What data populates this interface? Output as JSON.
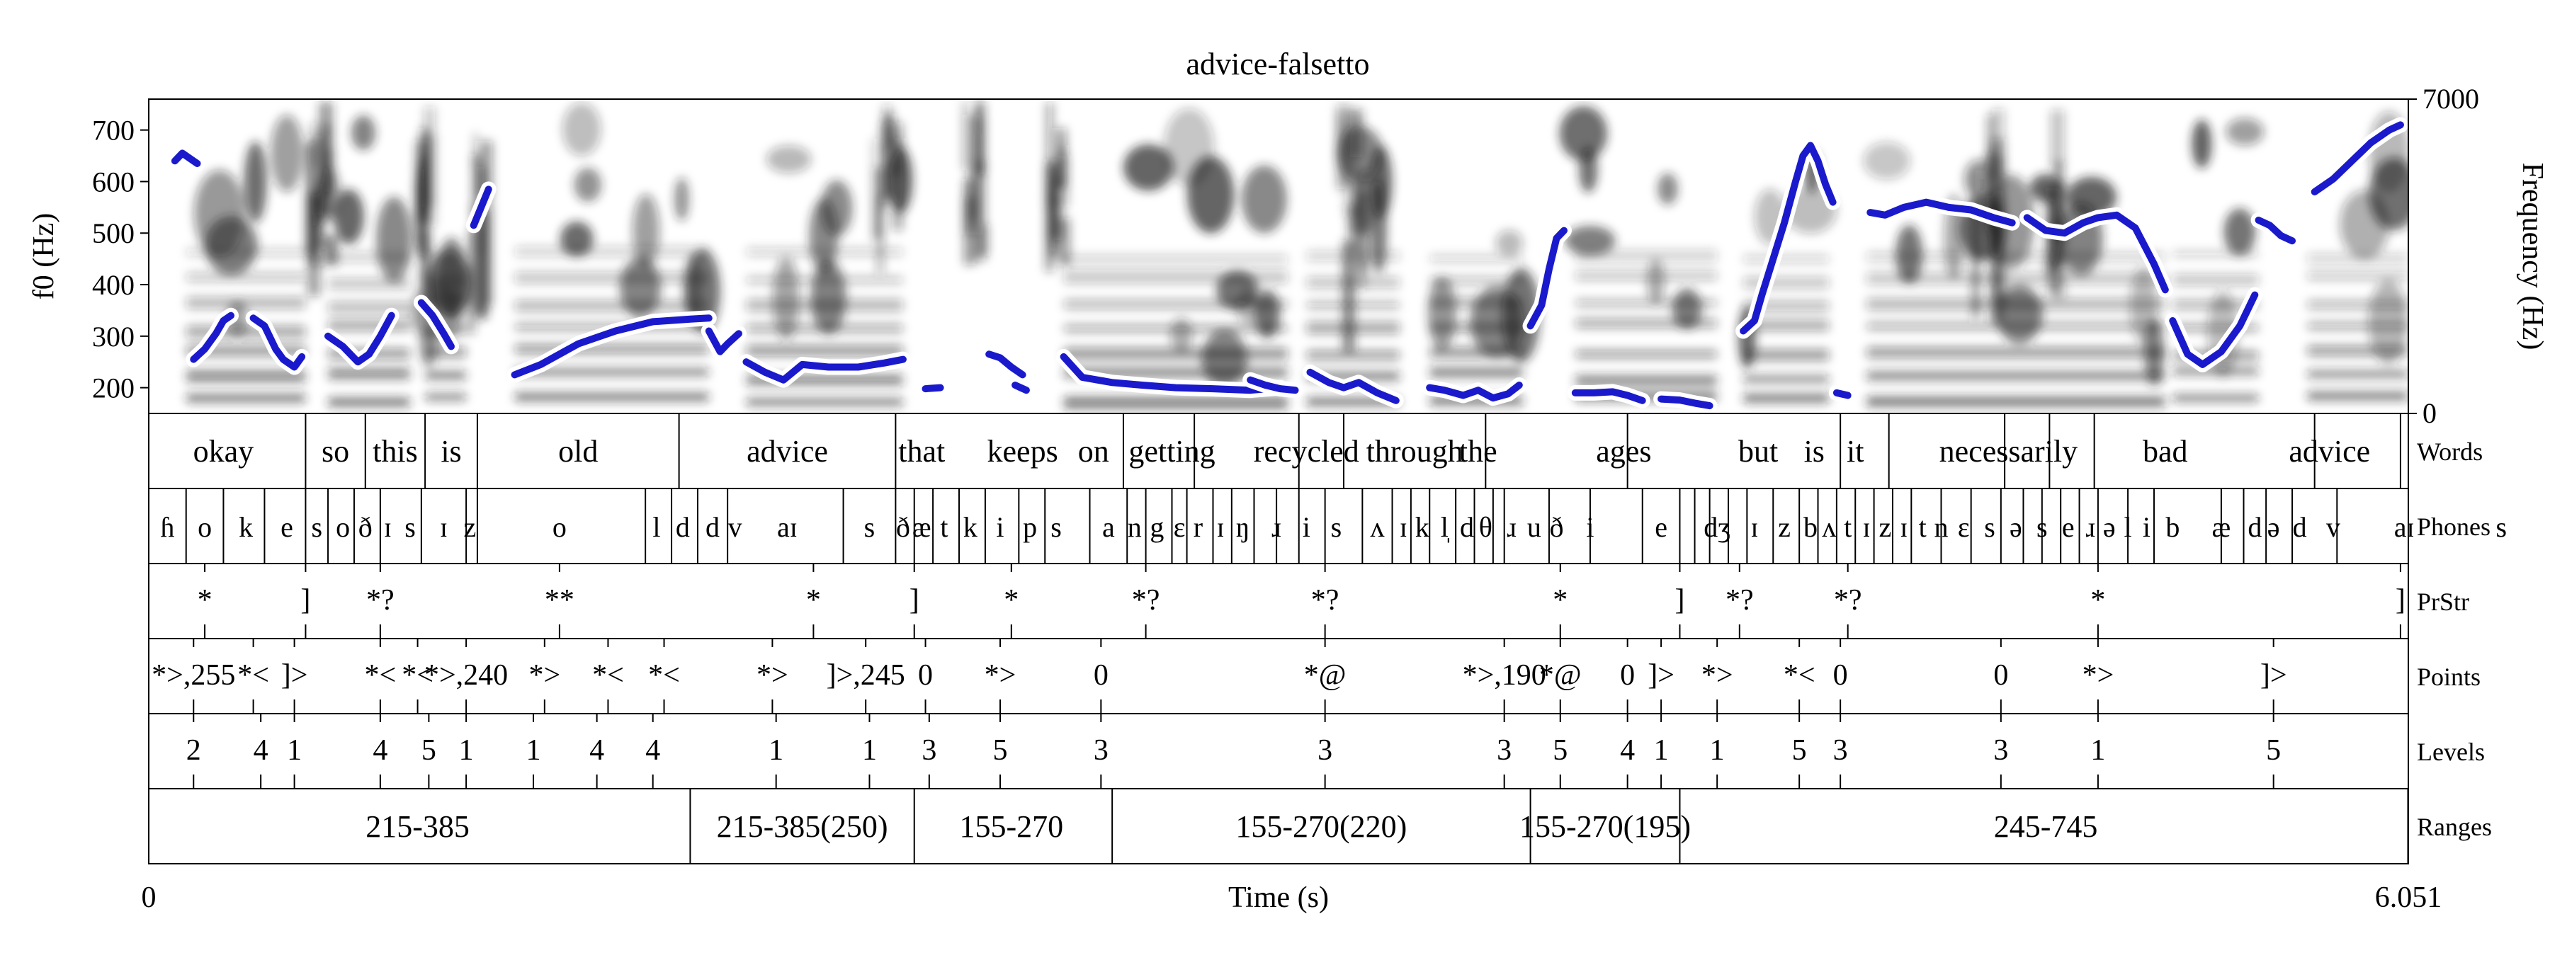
{
  "title": "advice-falsetto",
  "axes": {
    "f0_label": "f0 (Hz)",
    "f0_ticks": [
      700,
      600,
      500,
      400,
      300,
      200
    ],
    "freq_label": "Frequency (Hz)",
    "freq_top": "7000",
    "freq_bottom": "0",
    "time_label": "Time (s)",
    "time_start": "0",
    "time_end": "6.051"
  },
  "tier_names": [
    "Words",
    "Phones",
    "PrStr",
    "Points",
    "Levels",
    "Ranges"
  ],
  "words": {
    "bounds": [
      0,
      0.42,
      0.58,
      0.74,
      0.88,
      1.42,
      2.0,
      2.61,
      2.8,
      3.08,
      3.2,
      3.58,
      3.96,
      4.53,
      4.66,
      4.97,
      5.09,
      5.21,
      5.8,
      6.03,
      6.35,
      6.42
    ],
    "labels": [
      {
        "t": 0.2,
        "text": "okay"
      },
      {
        "t": 0.5,
        "text": "so"
      },
      {
        "t": 0.66,
        "text": "this"
      },
      {
        "t": 0.81,
        "text": "is"
      },
      {
        "t": 1.15,
        "text": "old"
      },
      {
        "t": 1.71,
        "text": "advice"
      },
      {
        "t": 2.07,
        "text": "that"
      },
      {
        "t": 2.34,
        "text": "keeps"
      },
      {
        "t": 2.53,
        "text": "on"
      },
      {
        "t": 2.74,
        "text": "getting"
      },
      {
        "t": 3.1,
        "text": "recycled"
      },
      {
        "t": 3.39,
        "text": "through"
      },
      {
        "t": 3.56,
        "text": "the"
      },
      {
        "t": 3.95,
        "text": "ages"
      },
      {
        "t": 4.31,
        "text": "but"
      },
      {
        "t": 4.46,
        "text": "is"
      },
      {
        "t": 4.57,
        "text": "it"
      },
      {
        "t": 4.98,
        "text": "necessarily"
      },
      {
        "t": 5.4,
        "text": "bad"
      },
      {
        "t": 5.84,
        "text": "advice"
      }
    ]
  },
  "phones": {
    "bounds": [
      0,
      0.1,
      0.2,
      0.31,
      0.42,
      0.48,
      0.55,
      0.62,
      0.73,
      0.85,
      0.88,
      1.33,
      1.4,
      1.47,
      1.55,
      1.86,
      2.0,
      2.05,
      2.1,
      2.17,
      2.24,
      2.33,
      2.4,
      2.52,
      2.62,
      2.67,
      2.74,
      2.78,
      2.85,
      2.9,
      2.96,
      3.02,
      3.08,
      3.15,
      3.25,
      3.33,
      3.38,
      3.43,
      3.5,
      3.55,
      3.6,
      3.63,
      3.75,
      3.86,
      4.0,
      4.1,
      4.14,
      4.18,
      4.23,
      4.28,
      4.35,
      4.42,
      4.47,
      4.52,
      4.57,
      4.62,
      4.67,
      4.72,
      4.8,
      4.88,
      4.96,
      5.02,
      5.07,
      5.12,
      5.17,
      5.22,
      5.3,
      5.37,
      5.55,
      5.61,
      5.67,
      5.74,
      5.86,
      6.07,
      6.32
    ],
    "labels": [
      {
        "t": 0.05,
        "text": "ɦ"
      },
      {
        "t": 0.15,
        "text": "o"
      },
      {
        "t": 0.26,
        "text": "k"
      },
      {
        "t": 0.37,
        "text": "e"
      },
      {
        "t": 0.45,
        "text": "s"
      },
      {
        "t": 0.52,
        "text": "o"
      },
      {
        "t": 0.58,
        "text": "ð"
      },
      {
        "t": 0.64,
        "text": "ɪ"
      },
      {
        "t": 0.7,
        "text": "s"
      },
      {
        "t": 0.79,
        "text": "ɪ"
      },
      {
        "t": 0.86,
        "text": "z"
      },
      {
        "t": 1.1,
        "text": "o"
      },
      {
        "t": 1.36,
        "text": "l"
      },
      {
        "t": 1.43,
        "text": "d"
      },
      {
        "t": 1.51,
        "text": "d"
      },
      {
        "t": 1.57,
        "text": "v"
      },
      {
        "t": 1.71,
        "text": "aɪ"
      },
      {
        "t": 1.93,
        "text": "s"
      },
      {
        "t": 2.02,
        "text": "ð"
      },
      {
        "t": 2.07,
        "text": "æ"
      },
      {
        "t": 2.13,
        "text": "t"
      },
      {
        "t": 2.2,
        "text": "k"
      },
      {
        "t": 2.28,
        "text": "i"
      },
      {
        "t": 2.36,
        "text": "p"
      },
      {
        "t": 2.43,
        "text": "s"
      },
      {
        "t": 2.57,
        "text": "a"
      },
      {
        "t": 2.64,
        "text": "n"
      },
      {
        "t": 2.7,
        "text": "g"
      },
      {
        "t": 2.76,
        "text": "ɛ"
      },
      {
        "t": 2.81,
        "text": "r"
      },
      {
        "t": 2.87,
        "text": "ɪ"
      },
      {
        "t": 2.93,
        "text": "ŋ"
      },
      {
        "t": 3.02,
        "text": "ɹ"
      },
      {
        "t": 3.1,
        "text": "i"
      },
      {
        "t": 3.18,
        "text": "s"
      },
      {
        "t": 3.29,
        "text": "ʌ"
      },
      {
        "t": 3.36,
        "text": "ɪ"
      },
      {
        "t": 3.41,
        "text": "k"
      },
      {
        "t": 3.47,
        "text": "l̩"
      },
      {
        "t": 3.53,
        "text": "d"
      },
      {
        "t": 3.58,
        "text": "θ"
      },
      {
        "t": 3.65,
        "text": "ɹ"
      },
      {
        "t": 3.71,
        "text": "u"
      },
      {
        "t": 3.77,
        "text": "ð"
      },
      {
        "t": 3.86,
        "text": "i"
      },
      {
        "t": 4.05,
        "text": "e"
      },
      {
        "t": 4.2,
        "text": "dʒ"
      },
      {
        "t": 4.3,
        "text": "ɪ"
      },
      {
        "t": 4.38,
        "text": "z"
      },
      {
        "t": 4.45,
        "text": "b"
      },
      {
        "t": 4.5,
        "text": "ʌ"
      },
      {
        "t": 4.55,
        "text": "t"
      },
      {
        "t": 4.6,
        "text": "ɪ"
      },
      {
        "t": 4.65,
        "text": "z"
      },
      {
        "t": 4.7,
        "text": "ɪ"
      },
      {
        "t": 4.75,
        "text": "t"
      },
      {
        "t": 4.8,
        "text": "n"
      },
      {
        "t": 4.86,
        "text": "ɛ"
      },
      {
        "t": 4.93,
        "text": "s"
      },
      {
        "t": 5.0,
        "text": "ə"
      },
      {
        "t": 5.07,
        "text": "s"
      },
      {
        "t": 5.14,
        "text": "e"
      },
      {
        "t": 5.2,
        "text": "ɹ"
      },
      {
        "t": 5.25,
        "text": "ə"
      },
      {
        "t": 5.3,
        "text": "l"
      },
      {
        "t": 5.35,
        "text": "i"
      },
      {
        "t": 5.42,
        "text": "b"
      },
      {
        "t": 5.55,
        "text": "æ"
      },
      {
        "t": 5.64,
        "text": "d"
      },
      {
        "t": 5.69,
        "text": "ə"
      },
      {
        "t": 5.76,
        "text": "d"
      },
      {
        "t": 5.85,
        "text": "v"
      },
      {
        "t": 6.04,
        "text": "aɪ"
      },
      {
        "t": 6.3,
        "text": "s"
      }
    ]
  },
  "prstr": {
    "marks": [
      {
        "t": 0.15,
        "text": "*"
      },
      {
        "t": 0.42,
        "text": "]"
      },
      {
        "t": 0.62,
        "text": "*?"
      },
      {
        "t": 1.1,
        "text": "**"
      },
      {
        "t": 1.78,
        "text": "*"
      },
      {
        "t": 2.05,
        "text": "]"
      },
      {
        "t": 2.31,
        "text": "*"
      },
      {
        "t": 2.67,
        "text": "*?"
      },
      {
        "t": 3.15,
        "text": "*?"
      },
      {
        "t": 3.78,
        "text": "*"
      },
      {
        "t": 4.1,
        "text": "]"
      },
      {
        "t": 4.26,
        "text": "*?"
      },
      {
        "t": 4.55,
        "text": "*?"
      },
      {
        "t": 5.22,
        "text": "*"
      },
      {
        "t": 6.03,
        "text": "]"
      }
    ]
  },
  "points": {
    "marks": [
      {
        "t": 0.12,
        "text": "*>,255"
      },
      {
        "t": 0.28,
        "text": "*<"
      },
      {
        "t": 0.39,
        "text": "]>"
      },
      {
        "t": 0.62,
        "text": "*<"
      },
      {
        "t": 0.72,
        "text": "*<"
      },
      {
        "t": 0.85,
        "text": "*>,240"
      },
      {
        "t": 1.06,
        "text": "*>"
      },
      {
        "t": 1.23,
        "text": "*<"
      },
      {
        "t": 1.38,
        "text": "*<"
      },
      {
        "t": 1.67,
        "text": "*>"
      },
      {
        "t": 1.92,
        "text": "]>,245"
      },
      {
        "t": 2.08,
        "text": "0"
      },
      {
        "t": 2.28,
        "text": "*>"
      },
      {
        "t": 2.55,
        "text": "0"
      },
      {
        "t": 3.15,
        "text": "*@"
      },
      {
        "t": 3.63,
        "text": "*>,190"
      },
      {
        "t": 3.78,
        "text": "*@"
      },
      {
        "t": 3.96,
        "text": "0"
      },
      {
        "t": 4.05,
        "text": "]>"
      },
      {
        "t": 4.2,
        "text": "*>"
      },
      {
        "t": 4.42,
        "text": "*<"
      },
      {
        "t": 4.53,
        "text": "0"
      },
      {
        "t": 4.96,
        "text": "0"
      },
      {
        "t": 5.22,
        "text": "*>"
      },
      {
        "t": 5.69,
        "text": "]>"
      }
    ]
  },
  "levels": {
    "marks": [
      {
        "t": 0.12,
        "text": "2"
      },
      {
        "t": 0.3,
        "text": "4"
      },
      {
        "t": 0.39,
        "text": "1"
      },
      {
        "t": 0.62,
        "text": "4"
      },
      {
        "t": 0.75,
        "text": "5"
      },
      {
        "t": 0.85,
        "text": "1"
      },
      {
        "t": 1.03,
        "text": "1"
      },
      {
        "t": 1.2,
        "text": "4"
      },
      {
        "t": 1.35,
        "text": "4"
      },
      {
        "t": 1.68,
        "text": "1"
      },
      {
        "t": 1.93,
        "text": "1"
      },
      {
        "t": 2.09,
        "text": "3"
      },
      {
        "t": 2.28,
        "text": "5"
      },
      {
        "t": 2.55,
        "text": "3"
      },
      {
        "t": 3.15,
        "text": "3"
      },
      {
        "t": 3.63,
        "text": "3"
      },
      {
        "t": 3.78,
        "text": "5"
      },
      {
        "t": 3.96,
        "text": "4"
      },
      {
        "t": 4.05,
        "text": "1"
      },
      {
        "t": 4.2,
        "text": "1"
      },
      {
        "t": 4.42,
        "text": "5"
      },
      {
        "t": 4.53,
        "text": "3"
      },
      {
        "t": 4.96,
        "text": "3"
      },
      {
        "t": 5.22,
        "text": "1"
      },
      {
        "t": 5.69,
        "text": "5"
      }
    ]
  },
  "ranges": {
    "bounds": [
      0,
      1.45,
      2.05,
      2.58,
      3.7,
      4.1,
      6.05
    ],
    "labels": [
      {
        "t": 0.72,
        "text": "215-385"
      },
      {
        "t": 1.75,
        "text": "215-385(250)"
      },
      {
        "t": 2.31,
        "text": "155-270"
      },
      {
        "t": 3.14,
        "text": "155-270(220)"
      },
      {
        "t": 3.9,
        "text": "155-270(195)"
      },
      {
        "t": 5.08,
        "text": "245-745"
      }
    ]
  },
  "f0_segments": [
    [
      [
        0.07,
        640
      ],
      [
        0.09,
        655
      ],
      [
        0.11,
        645
      ],
      [
        0.13,
        635
      ]
    ],
    [
      [
        0.12,
        255
      ],
      [
        0.15,
        275
      ],
      [
        0.18,
        305
      ],
      [
        0.2,
        330
      ],
      [
        0.22,
        340
      ]
    ],
    [
      [
        0.28,
        335
      ],
      [
        0.31,
        320
      ],
      [
        0.34,
        275
      ],
      [
        0.36,
        255
      ],
      [
        0.39,
        240
      ],
      [
        0.41,
        260
      ]
    ],
    [
      [
        0.48,
        300
      ],
      [
        0.52,
        280
      ],
      [
        0.56,
        250
      ],
      [
        0.59,
        265
      ],
      [
        0.62,
        300
      ],
      [
        0.65,
        340
      ]
    ],
    [
      [
        0.73,
        365
      ],
      [
        0.76,
        340
      ],
      [
        0.79,
        305
      ],
      [
        0.81,
        280
      ]
    ],
    [
      [
        0.87,
        515
      ],
      [
        0.89,
        550
      ],
      [
        0.91,
        585
      ]
    ],
    [
      [
        0.98,
        225
      ],
      [
        1.05,
        245
      ],
      [
        1.15,
        285
      ],
      [
        1.25,
        310
      ],
      [
        1.35,
        328
      ],
      [
        1.45,
        333
      ],
      [
        1.5,
        335
      ]
    ],
    [
      [
        1.5,
        310
      ],
      [
        1.53,
        270
      ],
      [
        1.55,
        285
      ],
      [
        1.58,
        305
      ]
    ],
    [
      [
        1.6,
        250
      ],
      [
        1.65,
        230
      ],
      [
        1.7,
        215
      ],
      [
        1.75,
        245
      ],
      [
        1.82,
        240
      ],
      [
        1.9,
        240
      ],
      [
        1.97,
        248
      ],
      [
        2.02,
        255
      ]
    ],
    [
      [
        2.08,
        198
      ],
      [
        2.12,
        200
      ]
    ],
    [
      [
        2.25,
        265
      ],
      [
        2.28,
        258
      ],
      [
        2.31,
        240
      ],
      [
        2.34,
        225
      ]
    ],
    [
      [
        2.32,
        205
      ],
      [
        2.35,
        195
      ]
    ],
    [
      [
        2.45,
        260
      ],
      [
        2.5,
        220
      ],
      [
        2.58,
        210
      ],
      [
        2.66,
        205
      ],
      [
        2.75,
        200
      ],
      [
        2.85,
        198
      ],
      [
        2.95,
        195
      ],
      [
        3.03,
        200
      ]
    ],
    [
      [
        2.95,
        215
      ],
      [
        2.99,
        205
      ],
      [
        3.03,
        198
      ],
      [
        3.07,
        195
      ]
    ],
    [
      [
        3.11,
        230
      ],
      [
        3.16,
        210
      ],
      [
        3.2,
        200
      ],
      [
        3.24,
        210
      ],
      [
        3.29,
        190
      ],
      [
        3.34,
        175
      ]
    ],
    [
      [
        3.43,
        200
      ],
      [
        3.47,
        195
      ],
      [
        3.52,
        185
      ],
      [
        3.56,
        195
      ],
      [
        3.6,
        180
      ],
      [
        3.64,
        188
      ],
      [
        3.67,
        205
      ]
    ],
    [
      [
        3.7,
        320
      ],
      [
        3.73,
        360
      ],
      [
        3.75,
        430
      ],
      [
        3.77,
        490
      ],
      [
        3.79,
        505
      ]
    ],
    [
      [
        3.82,
        190
      ],
      [
        3.87,
        190
      ],
      [
        3.92,
        192
      ],
      [
        3.96,
        185
      ],
      [
        4.0,
        175
      ]
    ],
    [
      [
        4.05,
        178
      ],
      [
        4.1,
        176
      ],
      [
        4.14,
        170
      ],
      [
        4.18,
        165
      ]
    ],
    [
      [
        4.27,
        310
      ],
      [
        4.3,
        330
      ],
      [
        4.32,
        380
      ],
      [
        4.35,
        450
      ],
      [
        4.38,
        520
      ],
      [
        4.41,
        600
      ],
      [
        4.43,
        650
      ],
      [
        4.45,
        670
      ],
      [
        4.47,
        640
      ],
      [
        4.49,
        595
      ],
      [
        4.51,
        560
      ]
    ],
    [
      [
        4.52,
        190
      ],
      [
        4.55,
        185
      ]
    ],
    [
      [
        4.61,
        540
      ],
      [
        4.65,
        535
      ],
      [
        4.7,
        550
      ],
      [
        4.76,
        560
      ],
      [
        4.82,
        550
      ],
      [
        4.88,
        545
      ],
      [
        4.94,
        530
      ],
      [
        4.99,
        520
      ]
    ],
    [
      [
        5.03,
        530
      ],
      [
        5.08,
        505
      ],
      [
        5.13,
        500
      ],
      [
        5.18,
        520
      ],
      [
        5.22,
        530
      ],
      [
        5.27,
        535
      ],
      [
        5.32,
        510
      ],
      [
        5.37,
        440
      ],
      [
        5.4,
        390
      ]
    ],
    [
      [
        5.42,
        330
      ],
      [
        5.46,
        265
      ],
      [
        5.5,
        245
      ],
      [
        5.55,
        270
      ],
      [
        5.6,
        320
      ],
      [
        5.64,
        380
      ]
    ],
    [
      [
        5.65,
        525
      ],
      [
        5.68,
        515
      ],
      [
        5.71,
        495
      ],
      [
        5.74,
        485
      ]
    ],
    [
      [
        5.8,
        580
      ],
      [
        5.85,
        605
      ],
      [
        5.9,
        640
      ],
      [
        5.95,
        675
      ],
      [
        6.0,
        700
      ],
      [
        6.03,
        710
      ]
    ]
  ],
  "colors": {
    "f0_line": "#1a1acc",
    "f0_halo": "#ffffff",
    "spectro_dark": "#1e1e1e",
    "axis": "#000000"
  }
}
